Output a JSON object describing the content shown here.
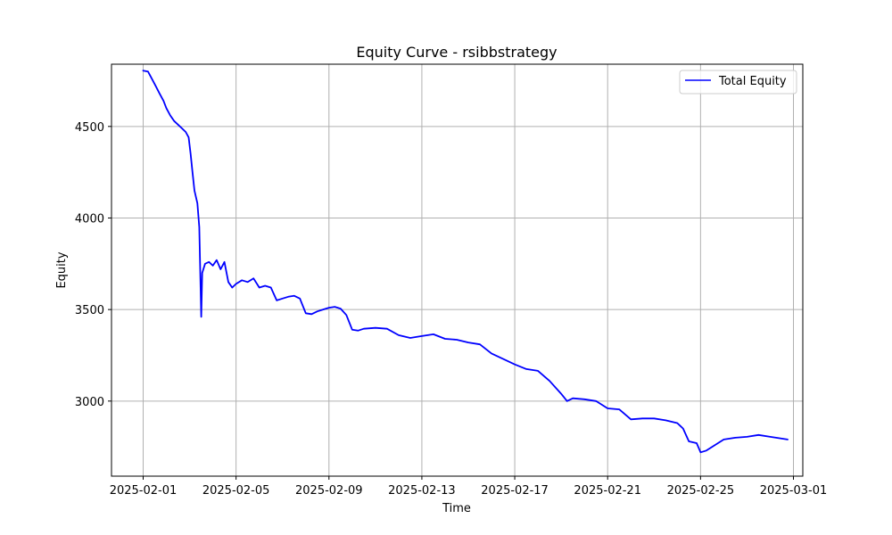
{
  "chart_data": {
    "type": "line",
    "title": "Equity Curve - rsibbstrategy",
    "xlabel": "Time",
    "ylabel": "Equity",
    "x_axis_type": "date",
    "xlim": [
      "2025-01-31",
      "2025-03-01"
    ],
    "ylim": [
      2590,
      4840
    ],
    "x_ticks": [
      "2025-02-01",
      "2025-02-05",
      "2025-02-09",
      "2025-02-13",
      "2025-02-17",
      "2025-02-21",
      "2025-02-25",
      "2025-03-01"
    ],
    "y_ticks": [
      3000,
      3500,
      4000,
      4500
    ],
    "grid": true,
    "legend": {
      "placement": "upper right",
      "entries": [
        "Total Equity"
      ]
    },
    "series": [
      {
        "name": "Total Equity",
        "color": "#0000ff",
        "points": [
          [
            "2025-02-01 00:00",
            4805
          ],
          [
            "2025-02-01 05:00",
            4800
          ],
          [
            "2025-02-01 09:00",
            4760
          ],
          [
            "2025-02-01 13:00",
            4720
          ],
          [
            "2025-02-01 17:00",
            4680
          ],
          [
            "2025-02-01 21:00",
            4640
          ],
          [
            "2025-02-02 00:00",
            4600
          ],
          [
            "2025-02-02 04:00",
            4560
          ],
          [
            "2025-02-02 08:00",
            4530
          ],
          [
            "2025-02-02 12:00",
            4510
          ],
          [
            "2025-02-02 16:00",
            4490
          ],
          [
            "2025-02-02 20:00",
            4470
          ],
          [
            "2025-02-02 23:00",
            4440
          ],
          [
            "2025-02-03 01:00",
            4350
          ],
          [
            "2025-02-03 03:00",
            4250
          ],
          [
            "2025-02-03 05:00",
            4150
          ],
          [
            "2025-02-03 08:00",
            4080
          ],
          [
            "2025-02-03 10:00",
            3950
          ],
          [
            "2025-02-03 12:00",
            3460
          ],
          [
            "2025-02-03 13:00",
            3700
          ],
          [
            "2025-02-03 16:00",
            3750
          ],
          [
            "2025-02-03 20:00",
            3760
          ],
          [
            "2025-02-04 00:00",
            3740
          ],
          [
            "2025-02-04 04:00",
            3770
          ],
          [
            "2025-02-04 08:00",
            3720
          ],
          [
            "2025-02-04 12:00",
            3760
          ],
          [
            "2025-02-04 16:00",
            3650
          ],
          [
            "2025-02-04 20:00",
            3620
          ],
          [
            "2025-02-05 00:00",
            3640
          ],
          [
            "2025-02-05 06:00",
            3660
          ],
          [
            "2025-02-05 12:00",
            3650
          ],
          [
            "2025-02-05 18:00",
            3670
          ],
          [
            "2025-02-06 00:00",
            3620
          ],
          [
            "2025-02-06 06:00",
            3630
          ],
          [
            "2025-02-06 12:00",
            3620
          ],
          [
            "2025-02-06 18:00",
            3550
          ],
          [
            "2025-02-07 00:00",
            3560
          ],
          [
            "2025-02-07 06:00",
            3570
          ],
          [
            "2025-02-07 12:00",
            3575
          ],
          [
            "2025-02-07 18:00",
            3560
          ],
          [
            "2025-02-08 00:00",
            3480
          ],
          [
            "2025-02-08 06:00",
            3475
          ],
          [
            "2025-02-08 12:00",
            3490
          ],
          [
            "2025-02-08 18:00",
            3500
          ],
          [
            "2025-02-09 00:00",
            3510
          ],
          [
            "2025-02-09 06:00",
            3515
          ],
          [
            "2025-02-09 12:00",
            3505
          ],
          [
            "2025-02-09 18:00",
            3470
          ],
          [
            "2025-02-10 00:00",
            3390
          ],
          [
            "2025-02-10 06:00",
            3385
          ],
          [
            "2025-02-10 12:00",
            3395
          ],
          [
            "2025-02-11 00:00",
            3400
          ],
          [
            "2025-02-11 12:00",
            3395
          ],
          [
            "2025-02-12 00:00",
            3360
          ],
          [
            "2025-02-12 12:00",
            3345
          ],
          [
            "2025-02-13 00:00",
            3355
          ],
          [
            "2025-02-13 12:00",
            3365
          ],
          [
            "2025-02-14 00:00",
            3340
          ],
          [
            "2025-02-14 12:00",
            3335
          ],
          [
            "2025-02-15 00:00",
            3320
          ],
          [
            "2025-02-15 12:00",
            3310
          ],
          [
            "2025-02-16 00:00",
            3260
          ],
          [
            "2025-02-16 12:00",
            3230
          ],
          [
            "2025-02-17 00:00",
            3200
          ],
          [
            "2025-02-17 12:00",
            3175
          ],
          [
            "2025-02-18 00:00",
            3165
          ],
          [
            "2025-02-18 12:00",
            3110
          ],
          [
            "2025-02-19 00:00",
            3040
          ],
          [
            "2025-02-19 06:00",
            3000
          ],
          [
            "2025-02-19 12:00",
            3015
          ],
          [
            "2025-02-20 00:00",
            3010
          ],
          [
            "2025-02-20 12:00",
            3000
          ],
          [
            "2025-02-21 00:00",
            2960
          ],
          [
            "2025-02-21 12:00",
            2955
          ],
          [
            "2025-02-22 00:00",
            2900
          ],
          [
            "2025-02-22 12:00",
            2905
          ],
          [
            "2025-02-23 00:00",
            2905
          ],
          [
            "2025-02-23 12:00",
            2895
          ],
          [
            "2025-02-24 00:00",
            2880
          ],
          [
            "2025-02-24 06:00",
            2850
          ],
          [
            "2025-02-24 12:00",
            2780
          ],
          [
            "2025-02-24 20:00",
            2770
          ],
          [
            "2025-02-25 00:00",
            2720
          ],
          [
            "2025-02-25 06:00",
            2730
          ],
          [
            "2025-02-25 12:00",
            2750
          ],
          [
            "2025-02-25 18:00",
            2770
          ],
          [
            "2025-02-26 00:00",
            2790
          ],
          [
            "2025-02-26 12:00",
            2800
          ],
          [
            "2025-02-27 00:00",
            2805
          ],
          [
            "2025-02-27 12:00",
            2815
          ],
          [
            "2025-02-28 00:00",
            2805
          ],
          [
            "2025-02-28 12:00",
            2795
          ],
          [
            "2025-02-28 18:00",
            2790
          ]
        ]
      }
    ]
  }
}
